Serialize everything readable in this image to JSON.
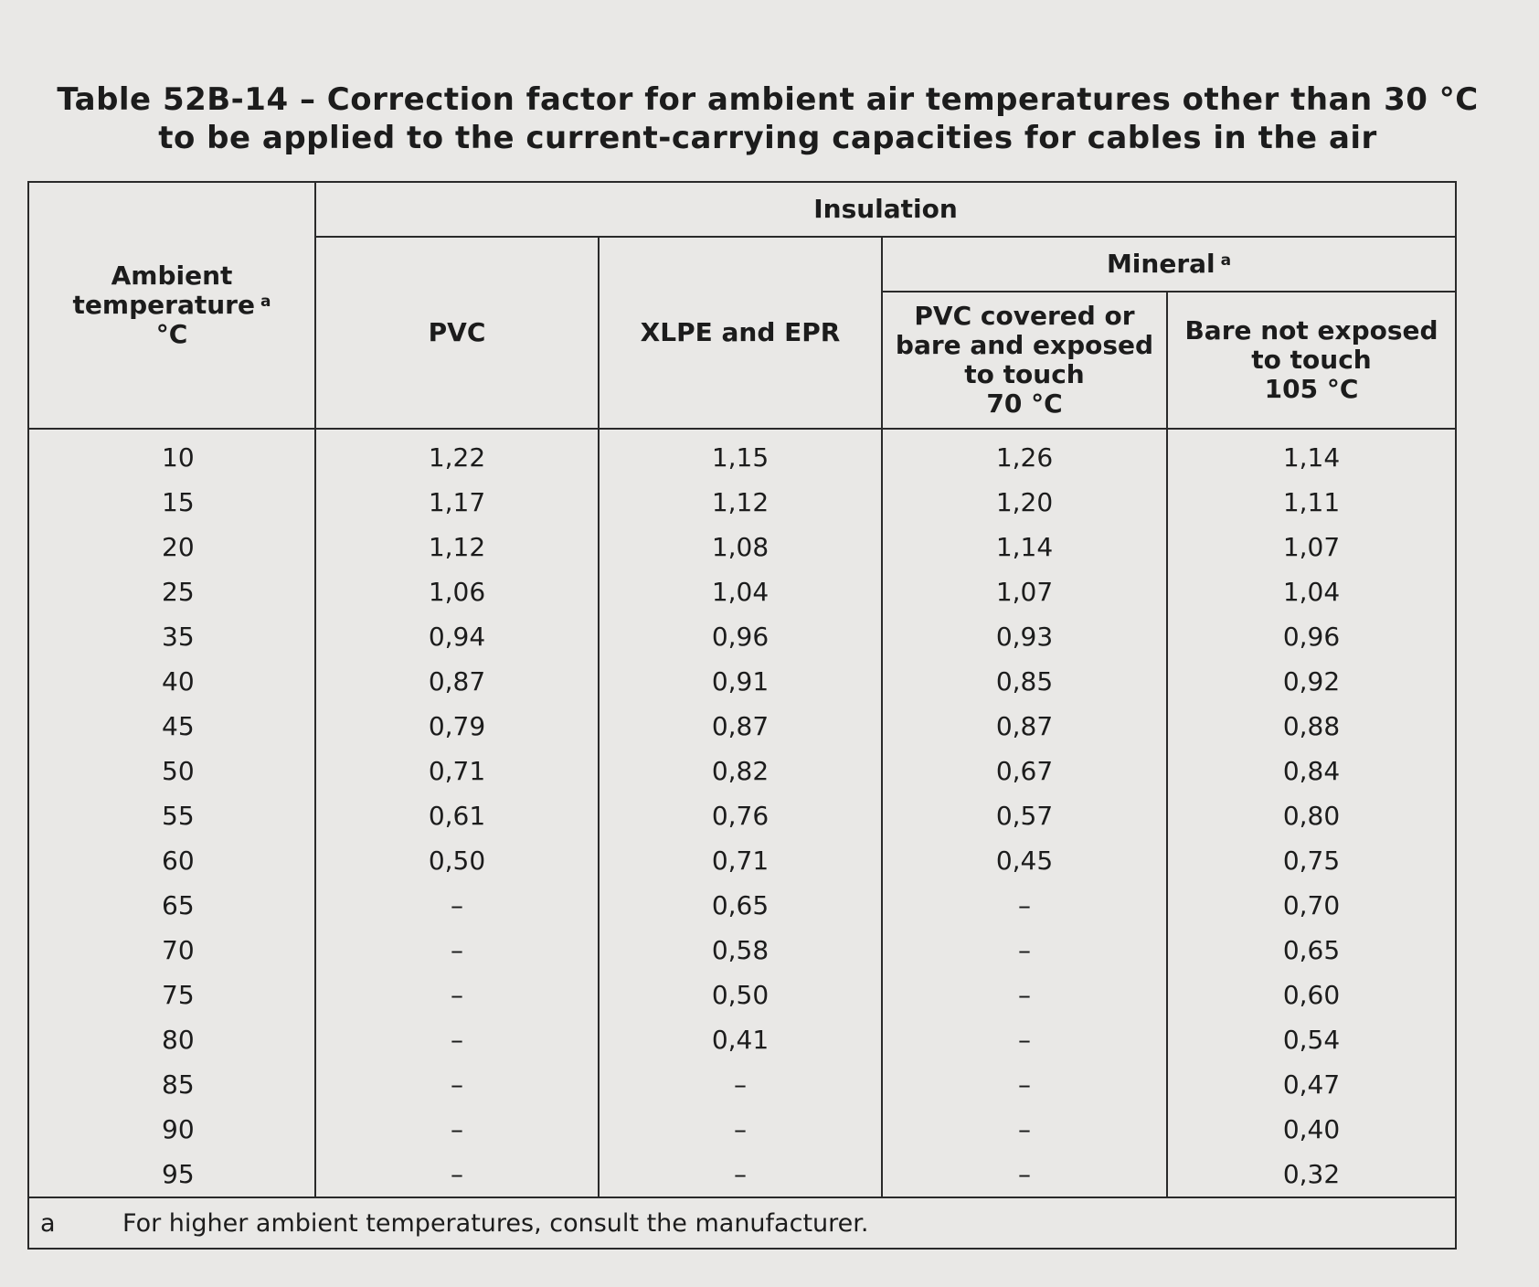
{
  "title": {
    "line1": "Table 52B-14 – Correction factor for ambient air temperatures other than 30 °C",
    "line2": "to be applied to the current-carrying capacities for cables in the air"
  },
  "headers": {
    "ambient_line1": "Ambient",
    "ambient_line2": "temperature",
    "ambient_footnote": "a",
    "ambient_unit": "°C",
    "insulation": "Insulation",
    "pvc": "PVC",
    "xlpe_epr": "XLPE and EPR",
    "mineral": "Mineral",
    "mineral_footnote": "a",
    "mineral_sub1_line1": "PVC covered or",
    "mineral_sub1_line2": "bare and exposed",
    "mineral_sub1_line3": "to touch",
    "mineral_sub1_line4": "70 °C",
    "mineral_sub2_line1": "Bare not exposed",
    "mineral_sub2_line2": "to touch",
    "mineral_sub2_line3": "105 °C"
  },
  "rows": [
    {
      "temp": "10",
      "pvc": "1,22",
      "xlpe": "1,15",
      "min70": "1,26",
      "min105": "1,14"
    },
    {
      "temp": "15",
      "pvc": "1,17",
      "xlpe": "1,12",
      "min70": "1,20",
      "min105": "1,11"
    },
    {
      "temp": "20",
      "pvc": "1,12",
      "xlpe": "1,08",
      "min70": "1,14",
      "min105": "1,07"
    },
    {
      "temp": "25",
      "pvc": "1,06",
      "xlpe": "1,04",
      "min70": "1,07",
      "min105": "1,04"
    },
    {
      "temp": "35",
      "pvc": "0,94",
      "xlpe": "0,96",
      "min70": "0,93",
      "min105": "0,96"
    },
    {
      "temp": "40",
      "pvc": "0,87",
      "xlpe": "0,91",
      "min70": "0,85",
      "min105": "0,92"
    },
    {
      "temp": "45",
      "pvc": "0,79",
      "xlpe": "0,87",
      "min70": "0,87",
      "min105": "0,88"
    },
    {
      "temp": "50",
      "pvc": "0,71",
      "xlpe": "0,82",
      "min70": "0,67",
      "min105": "0,84"
    },
    {
      "temp": "55",
      "pvc": "0,61",
      "xlpe": "0,76",
      "min70": "0,57",
      "min105": "0,80"
    },
    {
      "temp": "60",
      "pvc": "0,50",
      "xlpe": "0,71",
      "min70": "0,45",
      "min105": "0,75"
    },
    {
      "temp": "65",
      "pvc": "–",
      "xlpe": "0,65",
      "min70": "–",
      "min105": "0,70"
    },
    {
      "temp": "70",
      "pvc": "–",
      "xlpe": "0,58",
      "min70": "–",
      "min105": "0,65"
    },
    {
      "temp": "75",
      "pvc": "–",
      "xlpe": "0,50",
      "min70": "–",
      "min105": "0,60"
    },
    {
      "temp": "80",
      "pvc": "–",
      "xlpe": "0,41",
      "min70": "–",
      "min105": "0,54"
    },
    {
      "temp": "85",
      "pvc": "–",
      "xlpe": "–",
      "min70": "–",
      "min105": "0,47"
    },
    {
      "temp": "90",
      "pvc": "–",
      "xlpe": "–",
      "min70": "–",
      "min105": "0,40"
    },
    {
      "temp": "95",
      "pvc": "–",
      "xlpe": "–",
      "min70": "–",
      "min105": "0,32"
    }
  ],
  "footnote": {
    "mark": "a",
    "text": "For higher ambient temperatures, consult the manufacturer."
  }
}
